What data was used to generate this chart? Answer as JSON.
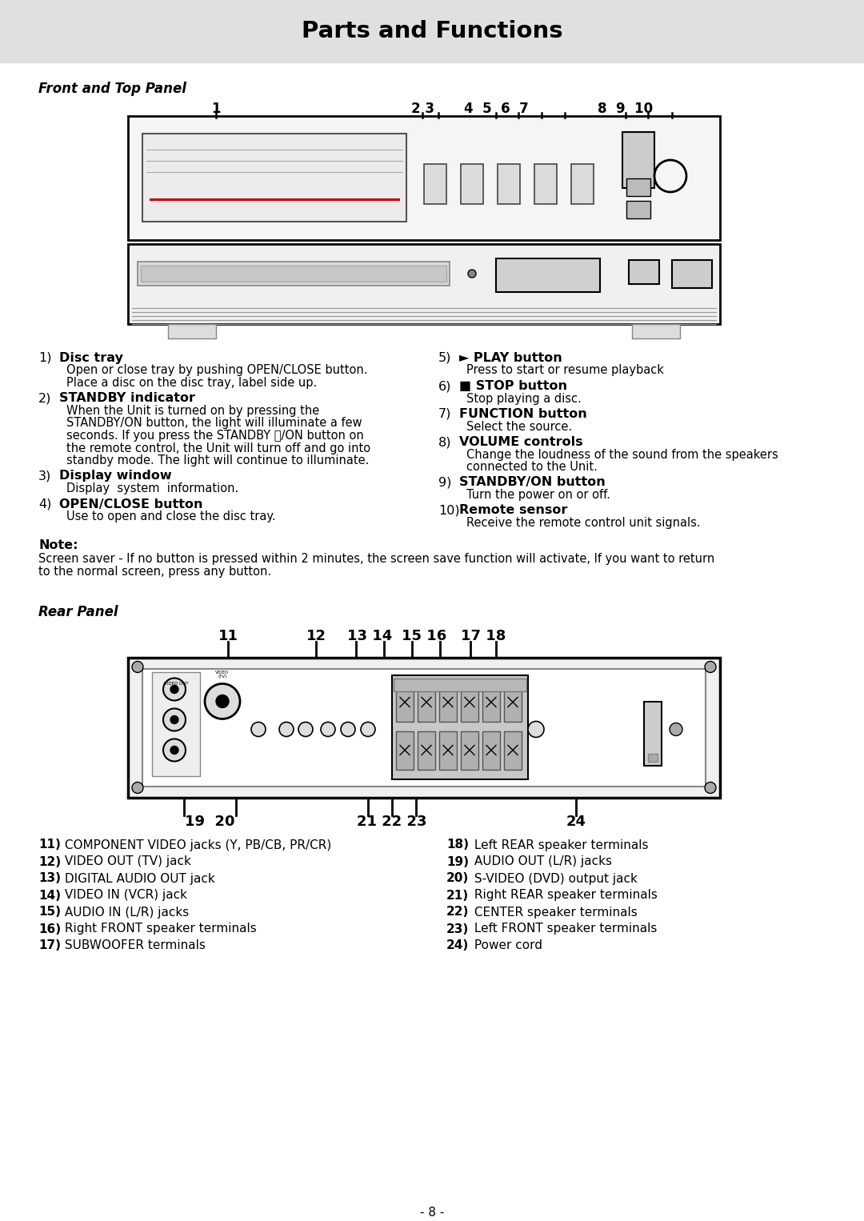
{
  "title": "Parts and Functions",
  "bg_header_color": "#e0e0e0",
  "section1_title": "Front and Top Panel",
  "section2_title": "Rear Panel",
  "items_left": [
    [
      "1)",
      "Disc tray",
      "Open or close tray by pushing OPEN/CLOSE button.\nPlace a disc on the disc tray, label side up."
    ],
    [
      "2)",
      "STANDBY indicator",
      "When the Unit is turned on by pressing the\nSTANDBY/ON button, the light will illuminate a few\nseconds. If you press the STANDBY ⏻/ON button on\nthe remote control, the Unit will turn off and go into\nstandby mode. The light will continue to illuminate."
    ],
    [
      "3)",
      "Display window",
      "Display  system  information."
    ],
    [
      "4)",
      "OPEN/CLOSE button",
      "Use to open and close the disc tray."
    ]
  ],
  "items_right": [
    [
      "5)",
      "► PLAY button",
      "Press to start or resume playback"
    ],
    [
      "6)",
      "■ STOP button",
      "Stop playing a disc."
    ],
    [
      "7)",
      "FUNCTION button",
      "Select the source."
    ],
    [
      "8)",
      "VOLUME controls",
      "Change the loudness of the sound from the speakers\nconnected to the Unit."
    ],
    [
      "9)",
      "STANDBY/ON button",
      "Turn the power on or off."
    ],
    [
      "10)",
      "Remote sensor",
      "Receive the remote control unit signals."
    ]
  ],
  "note_title": "Note:",
  "note_text": "Screen saver - If no button is pressed within 2 minutes, the screen save function will activate, If you want to return\nto the normal screen, press any button.",
  "rear_items_left": [
    [
      "11)",
      "COMPONENT VIDEO jacks (Y, P",
      "B",
      "/C",
      "B",
      ", P",
      "R",
      "/C",
      "R",
      ")"
    ],
    [
      "12)",
      "VIDEO OUT (TV) jack",
      "",
      "",
      "",
      "",
      "",
      "",
      ""
    ],
    [
      "13)",
      "DIGITAL AUDIO OUT jack",
      "",
      "",
      "",
      "",
      "",
      "",
      ""
    ],
    [
      "14)",
      "VIDEO IN (VCR) jack",
      "",
      "",
      "",
      "",
      "",
      "",
      ""
    ],
    [
      "15)",
      "AUDIO IN (L/R) jacks",
      "",
      "",
      "",
      "",
      "",
      "",
      ""
    ],
    [
      "16)",
      "Right FRONT speaker terminals",
      "",
      "",
      "",
      "",
      "",
      "",
      ""
    ],
    [
      "17)",
      "SUBWOOFER terminals",
      "",
      "",
      "",
      "",
      "",
      "",
      ""
    ]
  ],
  "rear_items_right": [
    [
      "18)",
      "Left REAR speaker terminals"
    ],
    [
      "19)",
      "AUDIO OUT (L/R) jacks"
    ],
    [
      "20)",
      "S-VIDEO (DVD) output jack"
    ],
    [
      "21)",
      "Right REAR speaker terminals"
    ],
    [
      "22)",
      "CENTER speaker terminals"
    ],
    [
      "23)",
      "Left FRONT speaker terminals"
    ],
    [
      "24)",
      "Power cord"
    ]
  ],
  "rear_items_left_plain": [
    "11) COMPONENT VIDEO jacks (Y, PB/CB, PR/CR)",
    "12) VIDEO OUT (TV) jack",
    "13) DIGITAL AUDIO OUT jack",
    "14) VIDEO IN (VCR) jack",
    "15) AUDIO IN (L/R) jacks",
    "16) Right FRONT speaker terminals",
    "17) SUBWOOFER terminals"
  ],
  "rear_items_right_plain": [
    "18) Left REAR speaker terminals",
    "19) AUDIO OUT (L/R) jacks",
    "20) S-VIDEO (DVD) output jack",
    "21) Right REAR speaker terminals",
    "22) CENTER speaker terminals",
    "23) Left FRONT speaker terminals",
    "24) Power cord"
  ],
  "page_num": "- 8 -"
}
